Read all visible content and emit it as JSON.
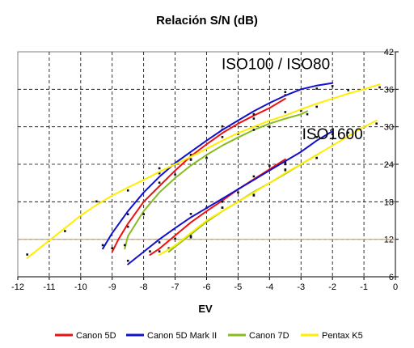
{
  "chart_data": {
    "type": "line",
    "title": "Relación S/N (dB)",
    "xlabel": "EV",
    "ylabel": "",
    "xlim": [
      -12,
      0
    ],
    "ylim": [
      6,
      42
    ],
    "x_ticks": [
      "-12",
      "-11",
      "-10",
      "-9",
      "-8",
      "-7",
      "-6",
      "-5",
      "-4",
      "-3",
      "-2",
      "-1",
      "0"
    ],
    "y_ticks": [
      "6",
      "12",
      "18",
      "24",
      "30",
      "36",
      "42"
    ],
    "grid": true,
    "reference_line": {
      "y": 12,
      "color": "#e8a050"
    },
    "annotations": [
      {
        "text": "ISO100 / ISO80",
        "x": -3.8,
        "y": 39.2
      },
      {
        "text": "ISO1600",
        "x": -2.0,
        "y": 28.0
      }
    ],
    "legend_position": "bottom",
    "series": [
      {
        "name": "Canon 5D",
        "color": "#ee1111",
        "points": [
          [
            -9.0,
            10.0
          ],
          [
            -8.8,
            12.0
          ],
          [
            -8.5,
            14.5
          ],
          [
            -8.0,
            18.0
          ],
          [
            -7.5,
            20.5
          ],
          [
            -7.0,
            23.0
          ],
          [
            -6.5,
            25.3
          ],
          [
            -6.0,
            27.2
          ],
          [
            -5.5,
            29.0
          ],
          [
            -5.0,
            30.5
          ],
          [
            -4.5,
            31.8
          ],
          [
            -4.0,
            33.0
          ],
          [
            -3.5,
            34.5
          ]
        ]
      },
      {
        "name": "Canon 5D",
        "color": "#ee1111",
        "points": [
          [
            -7.8,
            9.5
          ],
          [
            -7.5,
            10.5
          ],
          [
            -7.0,
            12.6
          ],
          [
            -6.5,
            14.7
          ],
          [
            -6.0,
            16.5
          ],
          [
            -5.5,
            18.2
          ],
          [
            -5.0,
            20.0
          ],
          [
            -4.5,
            21.6
          ],
          [
            -4.0,
            23.2
          ],
          [
            -3.5,
            24.8
          ]
        ]
      },
      {
        "name": "Canon 5D Mark II",
        "color": "#1111cc",
        "points": [
          [
            -9.3,
            10.5
          ],
          [
            -9.0,
            13.0
          ],
          [
            -8.5,
            16.5
          ],
          [
            -8.0,
            19.5
          ],
          [
            -7.5,
            22.0
          ],
          [
            -7.0,
            24.2
          ],
          [
            -6.5,
            26.0
          ],
          [
            -6.0,
            27.8
          ],
          [
            -5.5,
            29.5
          ],
          [
            -5.0,
            31.0
          ],
          [
            -4.5,
            32.5
          ],
          [
            -4.0,
            33.8
          ],
          [
            -3.5,
            35.0
          ],
          [
            -3.0,
            36.0
          ],
          [
            -2.5,
            36.6
          ],
          [
            -2.0,
            37.0
          ]
        ]
      },
      {
        "name": "Canon 5D Mark II",
        "color": "#1111cc",
        "points": [
          [
            -8.5,
            8.0
          ],
          [
            -8.0,
            10.0
          ],
          [
            -7.5,
            12.0
          ],
          [
            -7.0,
            13.8
          ],
          [
            -6.5,
            15.5
          ],
          [
            -6.0,
            17.0
          ],
          [
            -5.5,
            18.5
          ],
          [
            -5.0,
            20.0
          ],
          [
            -4.5,
            21.5
          ],
          [
            -4.0,
            23.0
          ],
          [
            -3.5,
            24.5
          ],
          [
            -3.0,
            26.0
          ],
          [
            -2.5,
            27.8
          ],
          [
            -2.0,
            29.3
          ]
        ]
      },
      {
        "name": "Canon 7D",
        "color": "#88bb22",
        "points": [
          [
            -8.6,
            10.5
          ],
          [
            -8.5,
            12.5
          ],
          [
            -8.0,
            16.5
          ],
          [
            -7.5,
            19.5
          ],
          [
            -7.0,
            21.8
          ],
          [
            -6.5,
            23.8
          ],
          [
            -6.0,
            25.5
          ],
          [
            -5.5,
            27.0
          ],
          [
            -5.0,
            28.3
          ],
          [
            -4.5,
            29.5
          ],
          [
            -4.0,
            30.5
          ],
          [
            -3.5,
            31.3
          ],
          [
            -3.0,
            32.0
          ],
          [
            -2.8,
            32.5
          ]
        ]
      },
      {
        "name": "Canon 7D",
        "color": "#88bb22",
        "points": [
          [
            -7.2,
            10.0
          ],
          [
            -7.0,
            10.8
          ],
          [
            -6.5,
            12.8
          ],
          [
            -6.0,
            14.8
          ],
          [
            -5.5,
            16.5
          ],
          [
            -5.0,
            18.0
          ],
          [
            -4.5,
            19.6
          ],
          [
            -4.0,
            21.0
          ],
          [
            -3.5,
            22.5
          ],
          [
            -3.0,
            24.0
          ],
          [
            -2.5,
            25.5
          ]
        ]
      },
      {
        "name": "Pentax K5",
        "color": "#ffee00",
        "points": [
          [
            -11.7,
            9.0
          ],
          [
            -11.0,
            11.8
          ],
          [
            -10.5,
            13.8
          ],
          [
            -10.0,
            15.8
          ],
          [
            -9.5,
            17.5
          ],
          [
            -9.0,
            19.0
          ],
          [
            -8.5,
            20.3
          ],
          [
            -8.0,
            21.5
          ],
          [
            -7.5,
            22.8
          ],
          [
            -7.0,
            24.0
          ],
          [
            -6.5,
            25.2
          ],
          [
            -6.0,
            26.5
          ],
          [
            -5.5,
            27.8
          ],
          [
            -5.0,
            29.0
          ],
          [
            -4.5,
            30.0
          ],
          [
            -4.0,
            31.0
          ],
          [
            -3.5,
            31.8
          ],
          [
            -3.0,
            32.8
          ],
          [
            -2.5,
            33.7
          ],
          [
            -2.0,
            34.5
          ],
          [
            -1.5,
            35.3
          ],
          [
            -1.0,
            36.0
          ],
          [
            -0.5,
            36.8
          ]
        ]
      },
      {
        "name": "Pentax K5",
        "color": "#ffee00",
        "points": [
          [
            -7.5,
            9.5
          ],
          [
            -7.0,
            11.0
          ],
          [
            -6.5,
            13.0
          ],
          [
            -6.0,
            15.0
          ],
          [
            -5.5,
            16.5
          ],
          [
            -5.0,
            18.0
          ],
          [
            -4.5,
            19.5
          ],
          [
            -4.0,
            21.0
          ],
          [
            -3.5,
            22.6
          ],
          [
            -3.0,
            24.0
          ],
          [
            -2.5,
            25.5
          ],
          [
            -2.0,
            27.0
          ],
          [
            -1.5,
            28.5
          ],
          [
            -1.0,
            30.0
          ],
          [
            -0.6,
            31.0
          ]
        ]
      }
    ],
    "legend": [
      {
        "label": "Canon 5D",
        "color": "#ee1111"
      },
      {
        "label": "Canon 5D Mark II",
        "color": "#1111cc"
      },
      {
        "label": "Canon 7D",
        "color": "#88bb22"
      },
      {
        "label": "Pentax K5",
        "color": "#ffee00"
      }
    ]
  }
}
